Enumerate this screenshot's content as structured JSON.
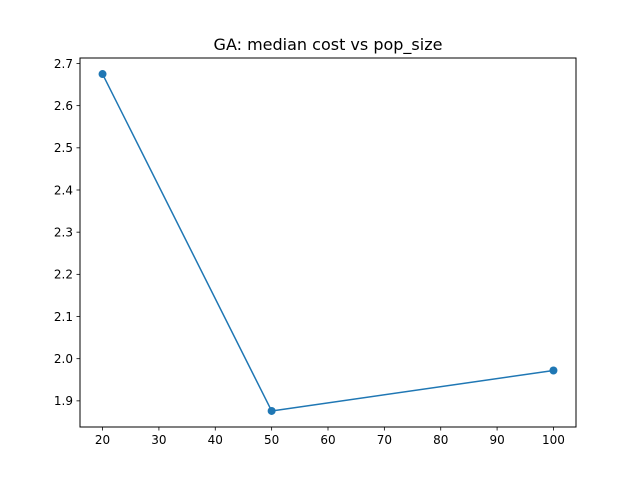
{
  "chart_data": {
    "type": "line",
    "title": "GA: median cost vs pop_size",
    "xlabel": "",
    "ylabel": "",
    "x": [
      20,
      50,
      100
    ],
    "series": [
      {
        "values": [
          2.675,
          1.876,
          1.972
        ],
        "color": "#1f77b4",
        "marker": "circle"
      }
    ],
    "xlim": [
      16,
      104
    ],
    "ylim": [
      1.838,
      2.713
    ],
    "xticks": [
      20,
      30,
      40,
      50,
      60,
      70,
      80,
      90,
      100
    ],
    "yticks": [
      1.9,
      2.0,
      2.1,
      2.2,
      2.3,
      2.4,
      2.5,
      2.6,
      2.7
    ],
    "ytick_labels": [
      "1.9",
      "2.0",
      "2.1",
      "2.2",
      "2.3",
      "2.4",
      "2.5",
      "2.6",
      "2.7"
    ],
    "grid": false,
    "legend": "none"
  }
}
